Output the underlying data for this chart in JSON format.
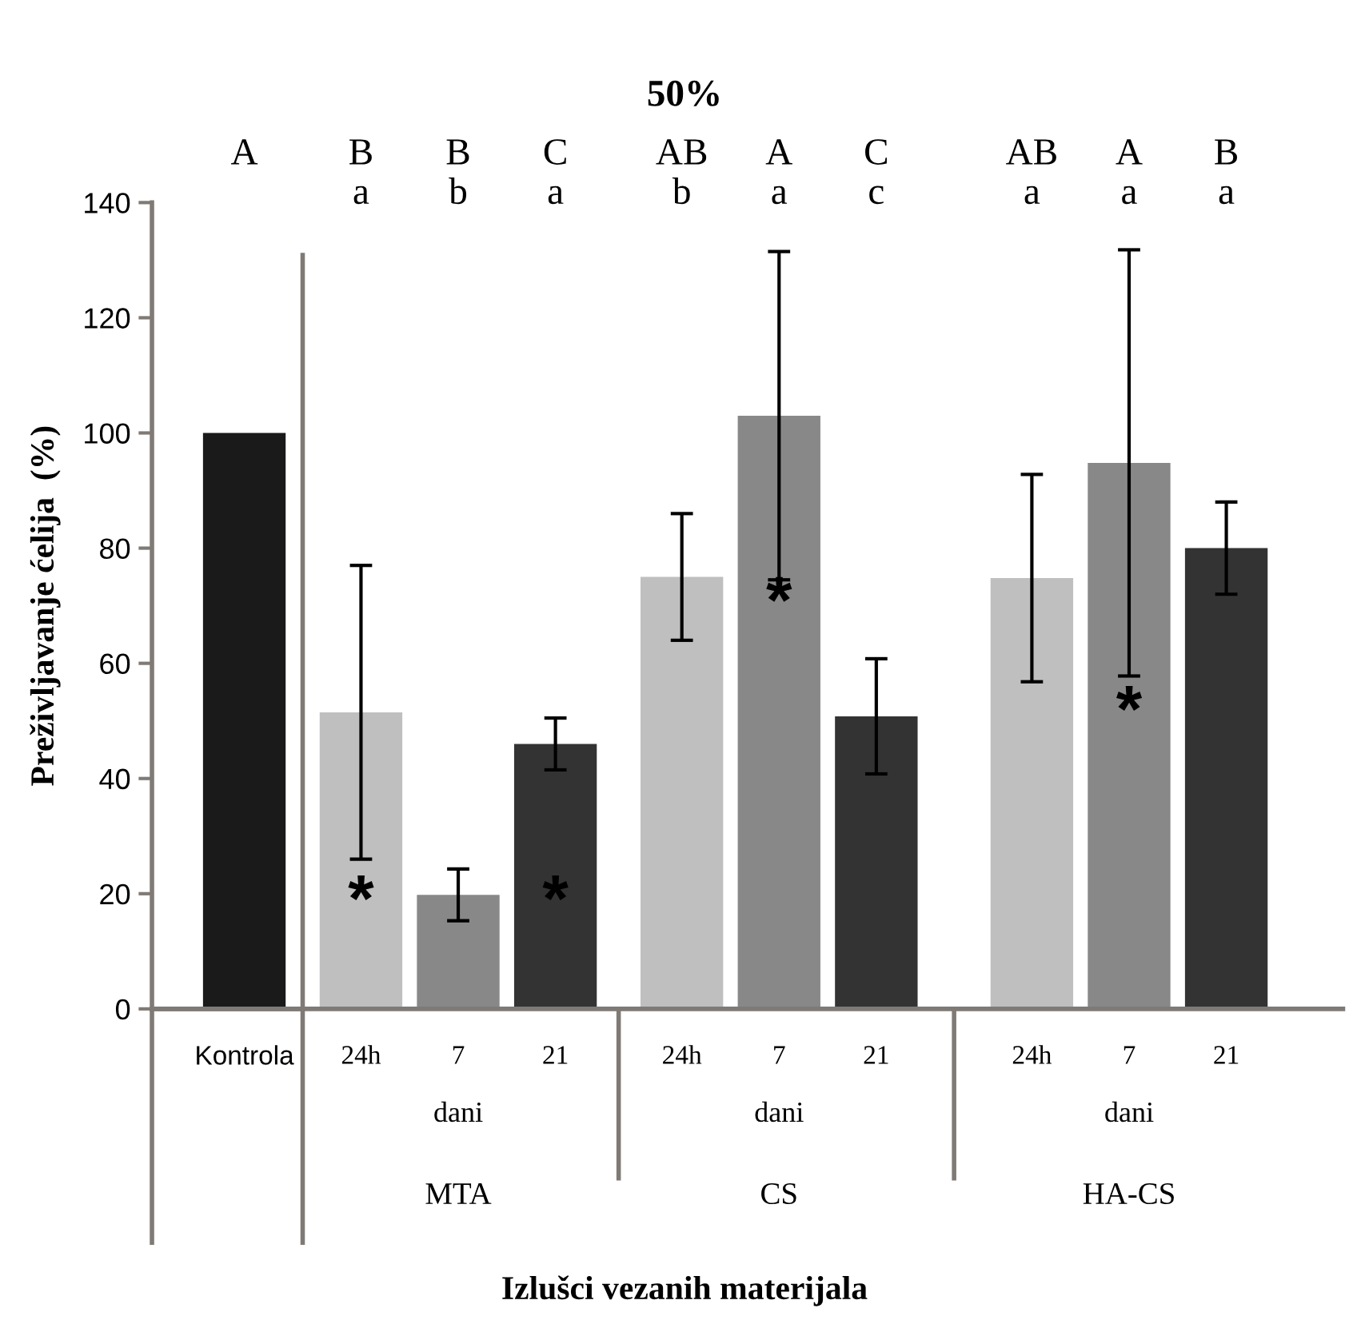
{
  "chart_data": {
    "type": "bar",
    "title": "50%",
    "ylabel": "Preživljavanje ćelija  (%)",
    "categories": [
      "Kontrola",
      "24h",
      "7",
      "21",
      "24h",
      "7",
      "21",
      "24h",
      "7",
      "21"
    ],
    "values": [
      100,
      51.5,
      19.8,
      46,
      75,
      103,
      50.8,
      74.8,
      94.8,
      80
    ],
    "colors": [
      "#1a1a1a",
      "#bfbfbf",
      "#888888",
      "#333333",
      "#bfbfbf",
      "#888888",
      "#333333",
      "#bfbfbf",
      "#888888",
      "#333333"
    ],
    "errors": [
      null,
      25.5,
      4.5,
      4.5,
      11,
      28.5,
      10,
      18,
      37,
      8
    ],
    "ylim": [
      0,
      140
    ],
    "yticks": [
      0,
      20,
      40,
      60,
      80,
      100,
      120,
      140
    ],
    "grid": false,
    "annotations": [
      "A",
      "B\na",
      "B\nb",
      "C\na",
      "AB\nb",
      "A\na",
      "C\nc",
      "AB\na",
      "A\na",
      "B\na",
      "*",
      "*",
      "*",
      "*",
      "dani",
      "dani",
      "dani",
      "MTA",
      "CS",
      "HA-CS",
      "Izlušci vezanih materijala"
    ]
  }
}
